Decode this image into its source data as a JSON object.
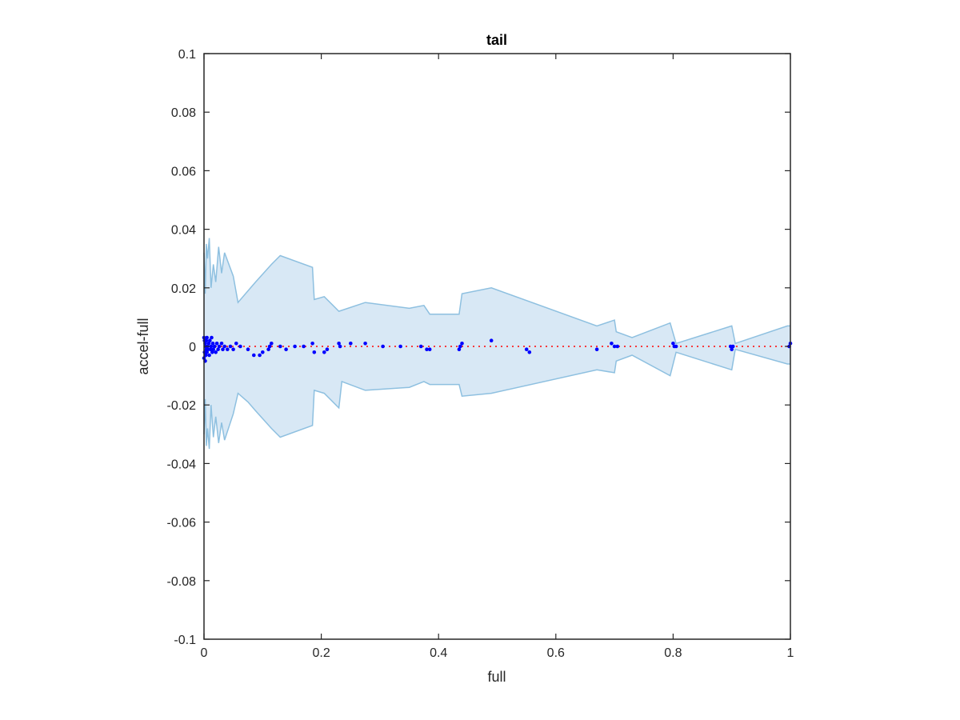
{
  "chart_data": {
    "type": "area",
    "title": "tail",
    "xlabel": "full",
    "ylabel": "accel-full",
    "xlim": [
      0,
      1
    ],
    "ylim": [
      -0.1,
      0.1
    ],
    "xticks": [
      0,
      0.2,
      0.4,
      0.6,
      0.8,
      1
    ],
    "xtick_labels": [
      "0",
      "0.2",
      "0.4",
      "0.6",
      "0.8",
      "1"
    ],
    "yticks": [
      0.1,
      0.08,
      0.06,
      0.04,
      0.02,
      0,
      -0.02,
      -0.04,
      -0.06,
      -0.08,
      -0.1
    ],
    "ytick_labels": [
      "0.1",
      "0.08",
      "0.06",
      "0.04",
      "0.02",
      "0",
      "-0.02",
      "-0.04",
      "-0.06",
      "-0.08",
      "-0.1"
    ],
    "grid": false,
    "colors": {
      "band_fill": "#d8e8f5",
      "band_edge": "#8ec0e0",
      "points": "#0000ff",
      "zero_line": "#ff0000",
      "axes": "#262626"
    },
    "band": {
      "upper": [
        [
          0,
          0.032
        ],
        [
          0.002,
          0.018
        ],
        [
          0.004,
          0.035
        ],
        [
          0.006,
          0.03
        ],
        [
          0.009,
          0.037
        ],
        [
          0.012,
          0.02
        ],
        [
          0.016,
          0.028
        ],
        [
          0.02,
          0.022
        ],
        [
          0.025,
          0.034
        ],
        [
          0.03,
          0.025
        ],
        [
          0.035,
          0.032
        ],
        [
          0.05,
          0.024
        ],
        [
          0.058,
          0.015
        ],
        [
          0.075,
          0.019
        ],
        [
          0.088,
          0.022
        ],
        [
          0.115,
          0.028
        ],
        [
          0.13,
          0.031
        ],
        [
          0.185,
          0.027
        ],
        [
          0.188,
          0.016
        ],
        [
          0.205,
          0.017
        ],
        [
          0.23,
          0.012
        ],
        [
          0.275,
          0.015
        ],
        [
          0.35,
          0.013
        ],
        [
          0.375,
          0.014
        ],
        [
          0.385,
          0.011
        ],
        [
          0.435,
          0.011
        ],
        [
          0.44,
          0.018
        ],
        [
          0.49,
          0.02
        ],
        [
          0.67,
          0.007
        ],
        [
          0.7,
          0.009
        ],
        [
          0.703,
          0.005
        ],
        [
          0.73,
          0.003
        ],
        [
          0.795,
          0.008
        ],
        [
          0.805,
          0.001
        ],
        [
          0.9,
          0.007
        ],
        [
          0.906,
          0.001
        ],
        [
          0.995,
          0.007
        ],
        [
          1,
          0.007
        ]
      ],
      "lower": [
        [
          0,
          -0.03
        ],
        [
          0.002,
          -0.018
        ],
        [
          0.004,
          -0.034
        ],
        [
          0.006,
          -0.028
        ],
        [
          0.009,
          -0.035
        ],
        [
          0.012,
          -0.02
        ],
        [
          0.016,
          -0.031
        ],
        [
          0.02,
          -0.024
        ],
        [
          0.025,
          -0.033
        ],
        [
          0.03,
          -0.026
        ],
        [
          0.035,
          -0.032
        ],
        [
          0.05,
          -0.023
        ],
        [
          0.058,
          -0.016
        ],
        [
          0.075,
          -0.019
        ],
        [
          0.088,
          -0.022
        ],
        [
          0.115,
          -0.028
        ],
        [
          0.13,
          -0.031
        ],
        [
          0.185,
          -0.027
        ],
        [
          0.188,
          -0.015
        ],
        [
          0.205,
          -0.016
        ],
        [
          0.23,
          -0.021
        ],
        [
          0.235,
          -0.012
        ],
        [
          0.275,
          -0.015
        ],
        [
          0.35,
          -0.014
        ],
        [
          0.375,
          -0.012
        ],
        [
          0.385,
          -0.013
        ],
        [
          0.435,
          -0.013
        ],
        [
          0.44,
          -0.017
        ],
        [
          0.49,
          -0.016
        ],
        [
          0.67,
          -0.008
        ],
        [
          0.7,
          -0.009
        ],
        [
          0.703,
          -0.005
        ],
        [
          0.73,
          -0.003
        ],
        [
          0.795,
          -0.01
        ],
        [
          0.805,
          -0.002
        ],
        [
          0.9,
          -0.008
        ],
        [
          0.906,
          -0.001
        ],
        [
          0.995,
          -0.006
        ],
        [
          1,
          -0.006
        ]
      ]
    },
    "points": [
      [
        0,
        0.003
      ],
      [
        0,
        -0.004
      ],
      [
        0.001,
        0.002
      ],
      [
        0.001,
        -0.002
      ],
      [
        0.002,
        0.001
      ],
      [
        0.002,
        -0.005
      ],
      [
        0.003,
        0.0
      ],
      [
        0.003,
        -0.003
      ],
      [
        0.004,
        0.002
      ],
      [
        0.004,
        -0.001
      ],
      [
        0.005,
        0.003
      ],
      [
        0.005,
        -0.002
      ],
      [
        0.006,
        0.0
      ],
      [
        0.007,
        -0.001
      ],
      [
        0.008,
        0.001
      ],
      [
        0.009,
        -0.003
      ],
      [
        0.01,
        0.002
      ],
      [
        0.011,
        -0.001
      ],
      [
        0.012,
        0.0
      ],
      [
        0.013,
        0.003
      ],
      [
        0.014,
        -0.002
      ],
      [
        0.015,
        0.001
      ],
      [
        0.016,
        -0.001
      ],
      [
        0.018,
        0.0
      ],
      [
        0.02,
        -0.002
      ],
      [
        0.022,
        0.001
      ],
      [
        0.024,
        -0.001
      ],
      [
        0.026,
        0.0
      ],
      [
        0.03,
        0.001
      ],
      [
        0.032,
        -0.001
      ],
      [
        0.035,
        0.0
      ],
      [
        0.04,
        -0.001
      ],
      [
        0.045,
        0.0
      ],
      [
        0.05,
        -0.001
      ],
      [
        0.055,
        0.001
      ],
      [
        0.062,
        0.0
      ],
      [
        0.075,
        -0.001
      ],
      [
        0.085,
        -0.003
      ],
      [
        0.095,
        -0.003
      ],
      [
        0.1,
        -0.002
      ],
      [
        0.11,
        -0.001
      ],
      [
        0.112,
        0.0
      ],
      [
        0.115,
        0.001
      ],
      [
        0.13,
        0.0
      ],
      [
        0.14,
        -0.001
      ],
      [
        0.155,
        0.0
      ],
      [
        0.17,
        0.0
      ],
      [
        0.185,
        0.001
      ],
      [
        0.188,
        -0.002
      ],
      [
        0.205,
        -0.002
      ],
      [
        0.21,
        -0.001
      ],
      [
        0.23,
        0.001
      ],
      [
        0.232,
        0.0
      ],
      [
        0.25,
        0.001
      ],
      [
        0.275,
        0.001
      ],
      [
        0.305,
        0.0
      ],
      [
        0.335,
        0.0
      ],
      [
        0.37,
        0.0
      ],
      [
        0.38,
        -0.001
      ],
      [
        0.385,
        -0.001
      ],
      [
        0.435,
        -0.001
      ],
      [
        0.437,
        0.0
      ],
      [
        0.44,
        0.001
      ],
      [
        0.49,
        0.002
      ],
      [
        0.55,
        -0.001
      ],
      [
        0.555,
        -0.002
      ],
      [
        0.67,
        -0.001
      ],
      [
        0.695,
        0.001
      ],
      [
        0.7,
        0.0
      ],
      [
        0.705,
        0.0
      ],
      [
        0.8,
        0.001
      ],
      [
        0.802,
        0.0
      ],
      [
        0.805,
        0.0
      ],
      [
        0.898,
        0.0
      ],
      [
        0.9,
        -0.001
      ],
      [
        0.902,
        0.0
      ],
      [
        0.998,
        0.0
      ],
      [
        1,
        0.001
      ]
    ]
  }
}
